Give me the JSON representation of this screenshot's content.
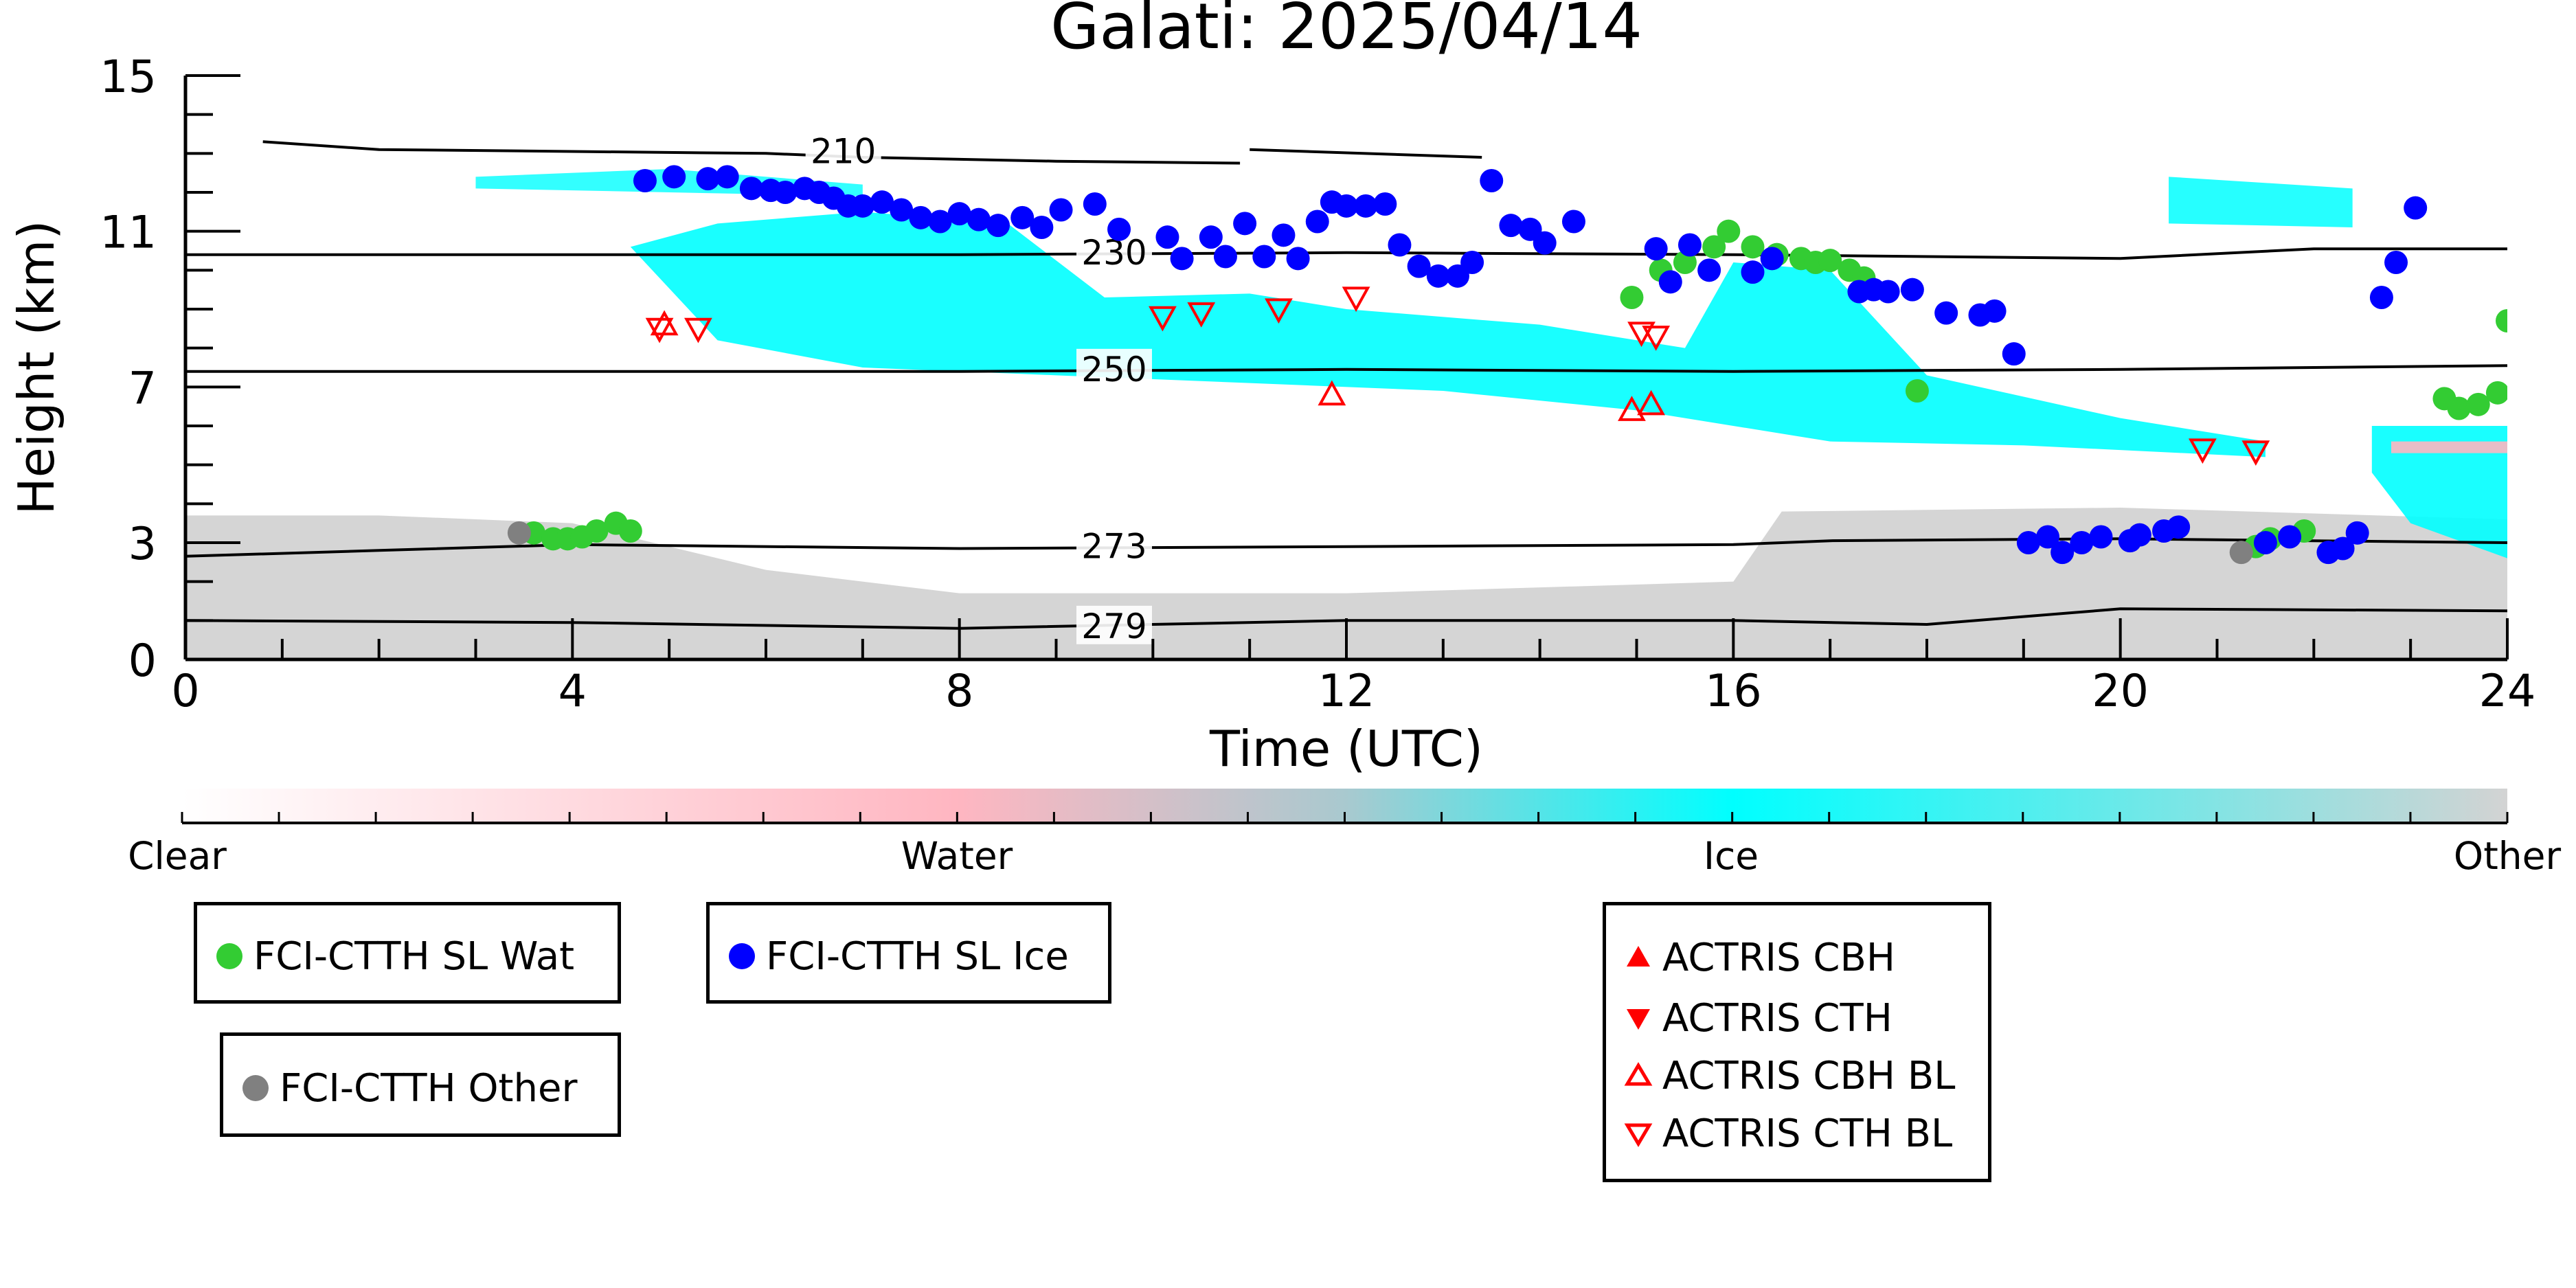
{
  "chart_data": {
    "type": "scatter",
    "title": "Galati: 2025/04/14",
    "xlabel": "Time (UTC)",
    "ylabel": "Height (km)",
    "xlim": [
      0,
      24
    ],
    "ylim": [
      0,
      15
    ],
    "xticks": [
      0,
      4,
      8,
      12,
      16,
      20,
      24
    ],
    "yticks": [
      0,
      3,
      7,
      11,
      15
    ],
    "colorbar": {
      "labels": [
        "Clear",
        "Water",
        "Ice",
        "Other"
      ],
      "colors": [
        "#ffffff",
        "#ffb6c1",
        "#00ffff",
        "#d3d3d3"
      ]
    },
    "contours": [
      {
        "label": "210",
        "points": [
          [
            0.8,
            13.3
          ],
          [
            2,
            13.1
          ],
          [
            4,
            13.05
          ],
          [
            6,
            13.0
          ],
          [
            7,
            12.9
          ],
          [
            9,
            12.8
          ],
          [
            10.9,
            12.75
          ]
        ]
      },
      {
        "label": "210",
        "points": [
          [
            11.0,
            13.1
          ],
          [
            13.4,
            12.9
          ]
        ]
      },
      {
        "label": "230",
        "points": [
          [
            0,
            10.4
          ],
          [
            4,
            10.4
          ],
          [
            8,
            10.4
          ],
          [
            12,
            10.45
          ],
          [
            16,
            10.4
          ],
          [
            20,
            10.3
          ],
          [
            22,
            10.55
          ],
          [
            24,
            10.55
          ]
        ]
      },
      {
        "label": "250",
        "points": [
          [
            0,
            7.4
          ],
          [
            4,
            7.4
          ],
          [
            8,
            7.4
          ],
          [
            12,
            7.45
          ],
          [
            16,
            7.4
          ],
          [
            20,
            7.45
          ],
          [
            22,
            7.5
          ],
          [
            24,
            7.55
          ]
        ]
      },
      {
        "label": "273",
        "points": [
          [
            0,
            2.65
          ],
          [
            2,
            2.8
          ],
          [
            4,
            2.95
          ],
          [
            8,
            2.85
          ],
          [
            12,
            2.9
          ],
          [
            16,
            2.95
          ],
          [
            17,
            3.05
          ],
          [
            20,
            3.1
          ],
          [
            22,
            3.05
          ],
          [
            24,
            3.0
          ]
        ]
      },
      {
        "label": "279",
        "points": [
          [
            0,
            1.0
          ],
          [
            4,
            0.95
          ],
          [
            8,
            0.8
          ],
          [
            12,
            1.0
          ],
          [
            16,
            1.0
          ],
          [
            18,
            0.9
          ],
          [
            20,
            1.3
          ],
          [
            24,
            1.25
          ]
        ]
      }
    ],
    "series": [
      {
        "name": "FCI-CTTH SL Wat",
        "color": "#33cc33",
        "marker": "circle",
        "x": [
          3.6,
          3.8,
          3.95,
          4.1,
          4.25,
          4.45,
          4.6,
          14.95,
          15.25,
          15.5,
          15.8,
          15.95,
          16.2,
          16.45,
          16.7,
          16.85,
          17.0,
          17.2,
          17.35,
          17.9,
          21.4,
          21.55,
          21.9,
          23.35,
          23.5,
          23.7,
          23.9,
          24.0
        ],
        "y": [
          3.25,
          3.1,
          3.1,
          3.15,
          3.3,
          3.5,
          3.3,
          9.3,
          10.0,
          10.2,
          10.6,
          11.0,
          10.6,
          10.4,
          10.3,
          10.2,
          10.25,
          10.0,
          9.8,
          6.9,
          2.9,
          3.1,
          3.3,
          6.7,
          6.45,
          6.55,
          6.85,
          8.7
        ]
      },
      {
        "name": "FCI-CTTH SL Ice",
        "color": "#0000ff",
        "marker": "circle",
        "x": [
          4.75,
          5.05,
          5.4,
          5.6,
          5.85,
          6.05,
          6.2,
          6.4,
          6.55,
          6.7,
          6.85,
          7.0,
          7.2,
          7.4,
          7.6,
          7.8,
          8.0,
          8.2,
          8.4,
          8.65,
          8.85,
          9.05,
          9.4,
          9.65,
          10.15,
          10.3,
          10.6,
          10.75,
          10.95,
          11.15,
          11.35,
          11.5,
          11.7,
          11.85,
          12.0,
          12.2,
          12.4,
          12.55,
          12.75,
          12.95,
          13.15,
          13.3,
          13.5,
          13.7,
          13.9,
          14.05,
          14.35,
          15.2,
          15.35,
          15.55,
          15.75,
          16.2,
          16.4,
          17.3,
          17.45,
          17.6,
          17.85,
          18.2,
          18.55,
          18.7,
          18.9,
          19.05,
          19.25,
          19.4,
          19.6,
          19.8,
          20.1,
          20.2,
          20.45,
          20.6,
          21.5,
          21.75,
          22.15,
          22.3,
          22.45,
          22.7,
          22.85,
          23.05
        ],
        "y": [
          12.3,
          12.4,
          12.35,
          12.4,
          12.1,
          12.05,
          12.0,
          12.1,
          12.0,
          11.85,
          11.65,
          11.65,
          11.75,
          11.55,
          11.35,
          11.25,
          11.45,
          11.3,
          11.15,
          11.35,
          11.1,
          11.55,
          11.7,
          11.05,
          10.85,
          10.3,
          10.85,
          10.35,
          11.2,
          10.35,
          10.9,
          10.3,
          11.25,
          11.75,
          11.65,
          11.65,
          11.7,
          10.65,
          10.1,
          9.85,
          9.85,
          10.2,
          12.3,
          11.15,
          11.05,
          10.7,
          11.25,
          10.55,
          9.7,
          10.65,
          10.0,
          9.95,
          10.3,
          9.45,
          9.5,
          9.45,
          9.5,
          8.9,
          8.85,
          8.95,
          7.85,
          3.0,
          3.15,
          2.75,
          3.0,
          3.15,
          3.05,
          3.2,
          3.3,
          3.4,
          3.0,
          3.15,
          2.75,
          2.85,
          3.25,
          9.3,
          10.2,
          11.6
        ],
        "dummy": []
      },
      {
        "name": "FCI-CTTH Other",
        "color": "#808080",
        "marker": "circle",
        "x": [
          3.45,
          21.25
        ],
        "y": [
          3.25,
          2.75
        ]
      },
      {
        "name": "ACTRIS CBH",
        "color": "#ff0000",
        "marker": "triangle-up-filled",
        "x": [],
        "y": []
      },
      {
        "name": "ACTRIS CTH",
        "color": "#ff0000",
        "marker": "triangle-down-filled",
        "x": [],
        "y": []
      },
      {
        "name": "ACTRIS CBH BL",
        "color": "#ff0000",
        "marker": "triangle-up-open",
        "x": [
          4.95,
          11.85,
          14.95,
          15.15
        ],
        "y": [
          8.6,
          6.8,
          6.4,
          6.55
        ]
      },
      {
        "name": "ACTRIS CTH BL",
        "color": "#ff0000",
        "marker": "triangle-down-open",
        "x": [
          4.9,
          5.3,
          10.1,
          10.5,
          11.3,
          12.1,
          15.05,
          15.2,
          20.85,
          21.4
        ],
        "y": [
          8.5,
          8.5,
          8.8,
          8.9,
          9.0,
          9.3,
          8.4,
          8.3,
          5.4,
          5.35
        ]
      }
    ]
  },
  "legends": {
    "box1": {
      "items": [
        {
          "label": "FCI-CTTH SL Wat",
          "color": "#33cc33",
          "marker": "circle"
        }
      ]
    },
    "box2": {
      "items": [
        {
          "label": "FCI-CTTH SL Ice",
          "color": "#0000ff",
          "marker": "circle"
        }
      ]
    },
    "box3": {
      "items": [
        {
          "label": "FCI-CTTH Other",
          "color": "#808080",
          "marker": "circle"
        }
      ]
    },
    "box4": {
      "items": [
        {
          "label": "ACTRIS CBH",
          "color": "#ff0000",
          "marker": "triangle-up-filled"
        },
        {
          "label": "ACTRIS CTH",
          "color": "#ff0000",
          "marker": "triangle-down-filled"
        },
        {
          "label": "ACTRIS CBH BL",
          "color": "#ff0000",
          "marker": "triangle-up-open"
        },
        {
          "label": "ACTRIS CTH BL",
          "color": "#ff0000",
          "marker": "triangle-down-open"
        }
      ]
    }
  }
}
